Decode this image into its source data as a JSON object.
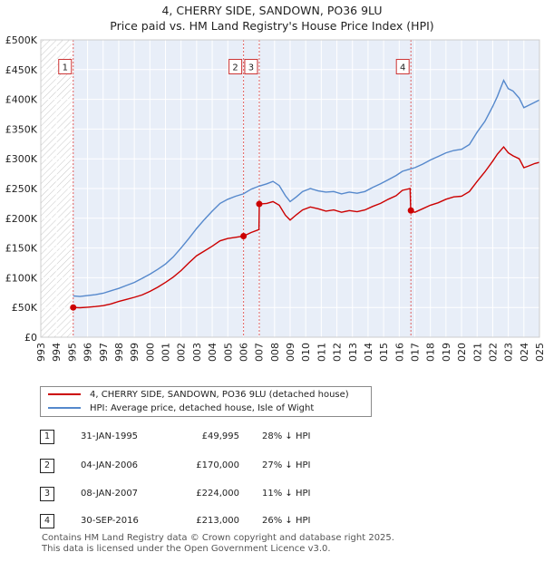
{
  "header": {
    "title": "4, CHERRY SIDE, SANDOWN, PO36 9LU",
    "subtitle": "Price paid vs. HM Land Registry's House Price Index (HPI)"
  },
  "chart_data": {
    "type": "line",
    "title": "4, CHERRY SIDE, SANDOWN, PO36 9LU",
    "subtitle": "Price paid vs. HM Land Registry's House Price Index (HPI)",
    "xlabel": "",
    "ylabel": "",
    "xlim": [
      1993,
      2025
    ],
    "ylim": [
      0,
      500000
    ],
    "x_ticks": [
      1993,
      1994,
      1995,
      1996,
      1997,
      1998,
      1999,
      2000,
      2001,
      2002,
      2003,
      2004,
      2005,
      2006,
      2007,
      2008,
      2009,
      2010,
      2011,
      2012,
      2013,
      2014,
      2015,
      2016,
      2017,
      2018,
      2019,
      2020,
      2021,
      2022,
      2023,
      2024,
      2025
    ],
    "y_ticks": [
      {
        "value": 0,
        "label": "£0"
      },
      {
        "value": 50000,
        "label": "£50K"
      },
      {
        "value": 100000,
        "label": "£100K"
      },
      {
        "value": 150000,
        "label": "£150K"
      },
      {
        "value": 200000,
        "label": "£200K"
      },
      {
        "value": 250000,
        "label": "£250K"
      },
      {
        "value": 300000,
        "label": "£300K"
      },
      {
        "value": 350000,
        "label": "£350K"
      },
      {
        "value": 400000,
        "label": "£400K"
      },
      {
        "value": 450000,
        "label": "£450K"
      },
      {
        "value": 500000,
        "label": "£500K"
      }
    ],
    "hatch_before": 1995.08,
    "grid": true,
    "colors": {
      "property": "#cc0000",
      "hpi": "#5588cc",
      "shade": "#e8eef8",
      "grid": "#d0d0d0",
      "marker_line": "#e06060"
    },
    "series": [
      {
        "name": "4, CHERRY SIDE, SANDOWN, PO36 9LU (detached house)",
        "color": "#cc0000",
        "points": [
          [
            1995.08,
            49995
          ],
          [
            1995.5,
            49500
          ],
          [
            1996,
            50500
          ],
          [
            1996.5,
            51500
          ],
          [
            1997,
            53000
          ],
          [
            1997.5,
            56000
          ],
          [
            1998,
            60000
          ],
          [
            1998.5,
            63500
          ],
          [
            1999,
            67000
          ],
          [
            1999.5,
            71000
          ],
          [
            2000,
            77000
          ],
          [
            2000.5,
            84000
          ],
          [
            2001,
            92000
          ],
          [
            2001.5,
            101000
          ],
          [
            2002,
            112000
          ],
          [
            2002.5,
            125000
          ],
          [
            2003,
            137000
          ],
          [
            2003.5,
            145000
          ],
          [
            2004,
            153000
          ],
          [
            2004.5,
            162000
          ],
          [
            2005,
            166000
          ],
          [
            2005.5,
            168000
          ],
          [
            2006.01,
            170000
          ],
          [
            2006.5,
            176000
          ],
          [
            2007.0,
            181000
          ],
          [
            2007.02,
            224000
          ],
          [
            2007.5,
            225000
          ],
          [
            2007.9,
            228000
          ],
          [
            2008.3,
            222000
          ],
          [
            2008.7,
            205000
          ],
          [
            2009.0,
            197000
          ],
          [
            2009.4,
            206000
          ],
          [
            2009.8,
            214000
          ],
          [
            2010.3,
            219000
          ],
          [
            2010.8,
            216000
          ],
          [
            2011.3,
            212000
          ],
          [
            2011.8,
            214000
          ],
          [
            2012.3,
            210000
          ],
          [
            2012.8,
            213000
          ],
          [
            2013.3,
            211000
          ],
          [
            2013.8,
            214000
          ],
          [
            2014.3,
            220000
          ],
          [
            2014.8,
            225000
          ],
          [
            2015.3,
            232000
          ],
          [
            2015.8,
            238000
          ],
          [
            2016.2,
            247000
          ],
          [
            2016.7,
            250000
          ],
          [
            2016.74,
            213000
          ],
          [
            2017.0,
            210000
          ],
          [
            2017.5,
            216000
          ],
          [
            2018,
            222000
          ],
          [
            2018.5,
            226000
          ],
          [
            2019,
            232000
          ],
          [
            2019.5,
            236000
          ],
          [
            2020,
            237000
          ],
          [
            2020.5,
            245000
          ],
          [
            2021,
            262000
          ],
          [
            2021.5,
            278000
          ],
          [
            2022,
            296000
          ],
          [
            2022.3,
            308000
          ],
          [
            2022.7,
            320000
          ],
          [
            2023.0,
            310000
          ],
          [
            2023.3,
            305000
          ],
          [
            2023.7,
            300000
          ],
          [
            2024.0,
            285000
          ],
          [
            2024.3,
            288000
          ],
          [
            2024.7,
            292000
          ],
          [
            2025.0,
            294000
          ]
        ]
      },
      {
        "name": "HPI: Average price, detached house, Isle of Wight",
        "color": "#5588cc",
        "points": [
          [
            1995.08,
            69500
          ],
          [
            1995.5,
            68500
          ],
          [
            1996,
            70000
          ],
          [
            1996.5,
            71500
          ],
          [
            1997,
            74000
          ],
          [
            1997.5,
            78000
          ],
          [
            1998,
            82000
          ],
          [
            1998.5,
            87000
          ],
          [
            1999,
            92000
          ],
          [
            1999.5,
            99000
          ],
          [
            2000,
            106000
          ],
          [
            2000.5,
            114000
          ],
          [
            2001,
            123000
          ],
          [
            2001.5,
            135000
          ],
          [
            2002,
            150000
          ],
          [
            2002.5,
            166000
          ],
          [
            2003,
            183000
          ],
          [
            2003.5,
            198000
          ],
          [
            2004,
            212000
          ],
          [
            2004.5,
            225000
          ],
          [
            2005,
            232000
          ],
          [
            2005.5,
            237000
          ],
          [
            2006,
            241000
          ],
          [
            2006.5,
            249000
          ],
          [
            2007,
            254000
          ],
          [
            2007.5,
            258000
          ],
          [
            2007.9,
            262000
          ],
          [
            2008.3,
            255000
          ],
          [
            2008.7,
            238000
          ],
          [
            2009.0,
            228000
          ],
          [
            2009.4,
            236000
          ],
          [
            2009.8,
            245000
          ],
          [
            2010.3,
            250000
          ],
          [
            2010.8,
            246000
          ],
          [
            2011.3,
            244000
          ],
          [
            2011.8,
            245000
          ],
          [
            2012.3,
            241000
          ],
          [
            2012.8,
            244000
          ],
          [
            2013.3,
            242000
          ],
          [
            2013.8,
            245000
          ],
          [
            2014.3,
            252000
          ],
          [
            2014.8,
            258000
          ],
          [
            2015.3,
            265000
          ],
          [
            2015.8,
            272000
          ],
          [
            2016.2,
            279000
          ],
          [
            2016.7,
            283000
          ],
          [
            2017.0,
            285000
          ],
          [
            2017.5,
            291000
          ],
          [
            2018,
            298000
          ],
          [
            2018.5,
            304000
          ],
          [
            2019,
            310000
          ],
          [
            2019.5,
            314000
          ],
          [
            2020,
            316000
          ],
          [
            2020.5,
            324000
          ],
          [
            2021,
            345000
          ],
          [
            2021.5,
            363000
          ],
          [
            2022,
            388000
          ],
          [
            2022.3,
            405000
          ],
          [
            2022.7,
            432000
          ],
          [
            2023.0,
            418000
          ],
          [
            2023.3,
            414000
          ],
          [
            2023.7,
            402000
          ],
          [
            2024.0,
            386000
          ],
          [
            2024.3,
            390000
          ],
          [
            2024.7,
            395000
          ],
          [
            2025.0,
            399000
          ]
        ]
      }
    ],
    "sales": [
      {
        "id": "1",
        "x": 1995.08,
        "price": 49995
      },
      {
        "id": "2",
        "x": 2006.01,
        "price": 170000
      },
      {
        "id": "3",
        "x": 2007.02,
        "price": 224000
      },
      {
        "id": "4",
        "x": 2016.75,
        "price": 213000
      }
    ],
    "marker_box_value": 455000
  },
  "legend": {
    "property_label": "4, CHERRY SIDE, SANDOWN, PO36 9LU (detached house)",
    "hpi_label": "HPI: Average price, detached house, Isle of Wight"
  },
  "table": {
    "rows": [
      {
        "num": "1",
        "date": "31-JAN-1995",
        "price": "£49,995",
        "delta": "28% ↓ HPI"
      },
      {
        "num": "2",
        "date": "04-JAN-2006",
        "price": "£170,000",
        "delta": "27% ↓ HPI"
      },
      {
        "num": "3",
        "date": "08-JAN-2007",
        "price": "£224,000",
        "delta": "11% ↓ HPI"
      },
      {
        "num": "4",
        "date": "30-SEP-2016",
        "price": "£213,000",
        "delta": "26% ↓ HPI"
      }
    ]
  },
  "footer": {
    "line1": "Contains HM Land Registry data © Crown copyright and database right 2025.",
    "line2": "This data is licensed under the Open Government Licence v3.0."
  }
}
